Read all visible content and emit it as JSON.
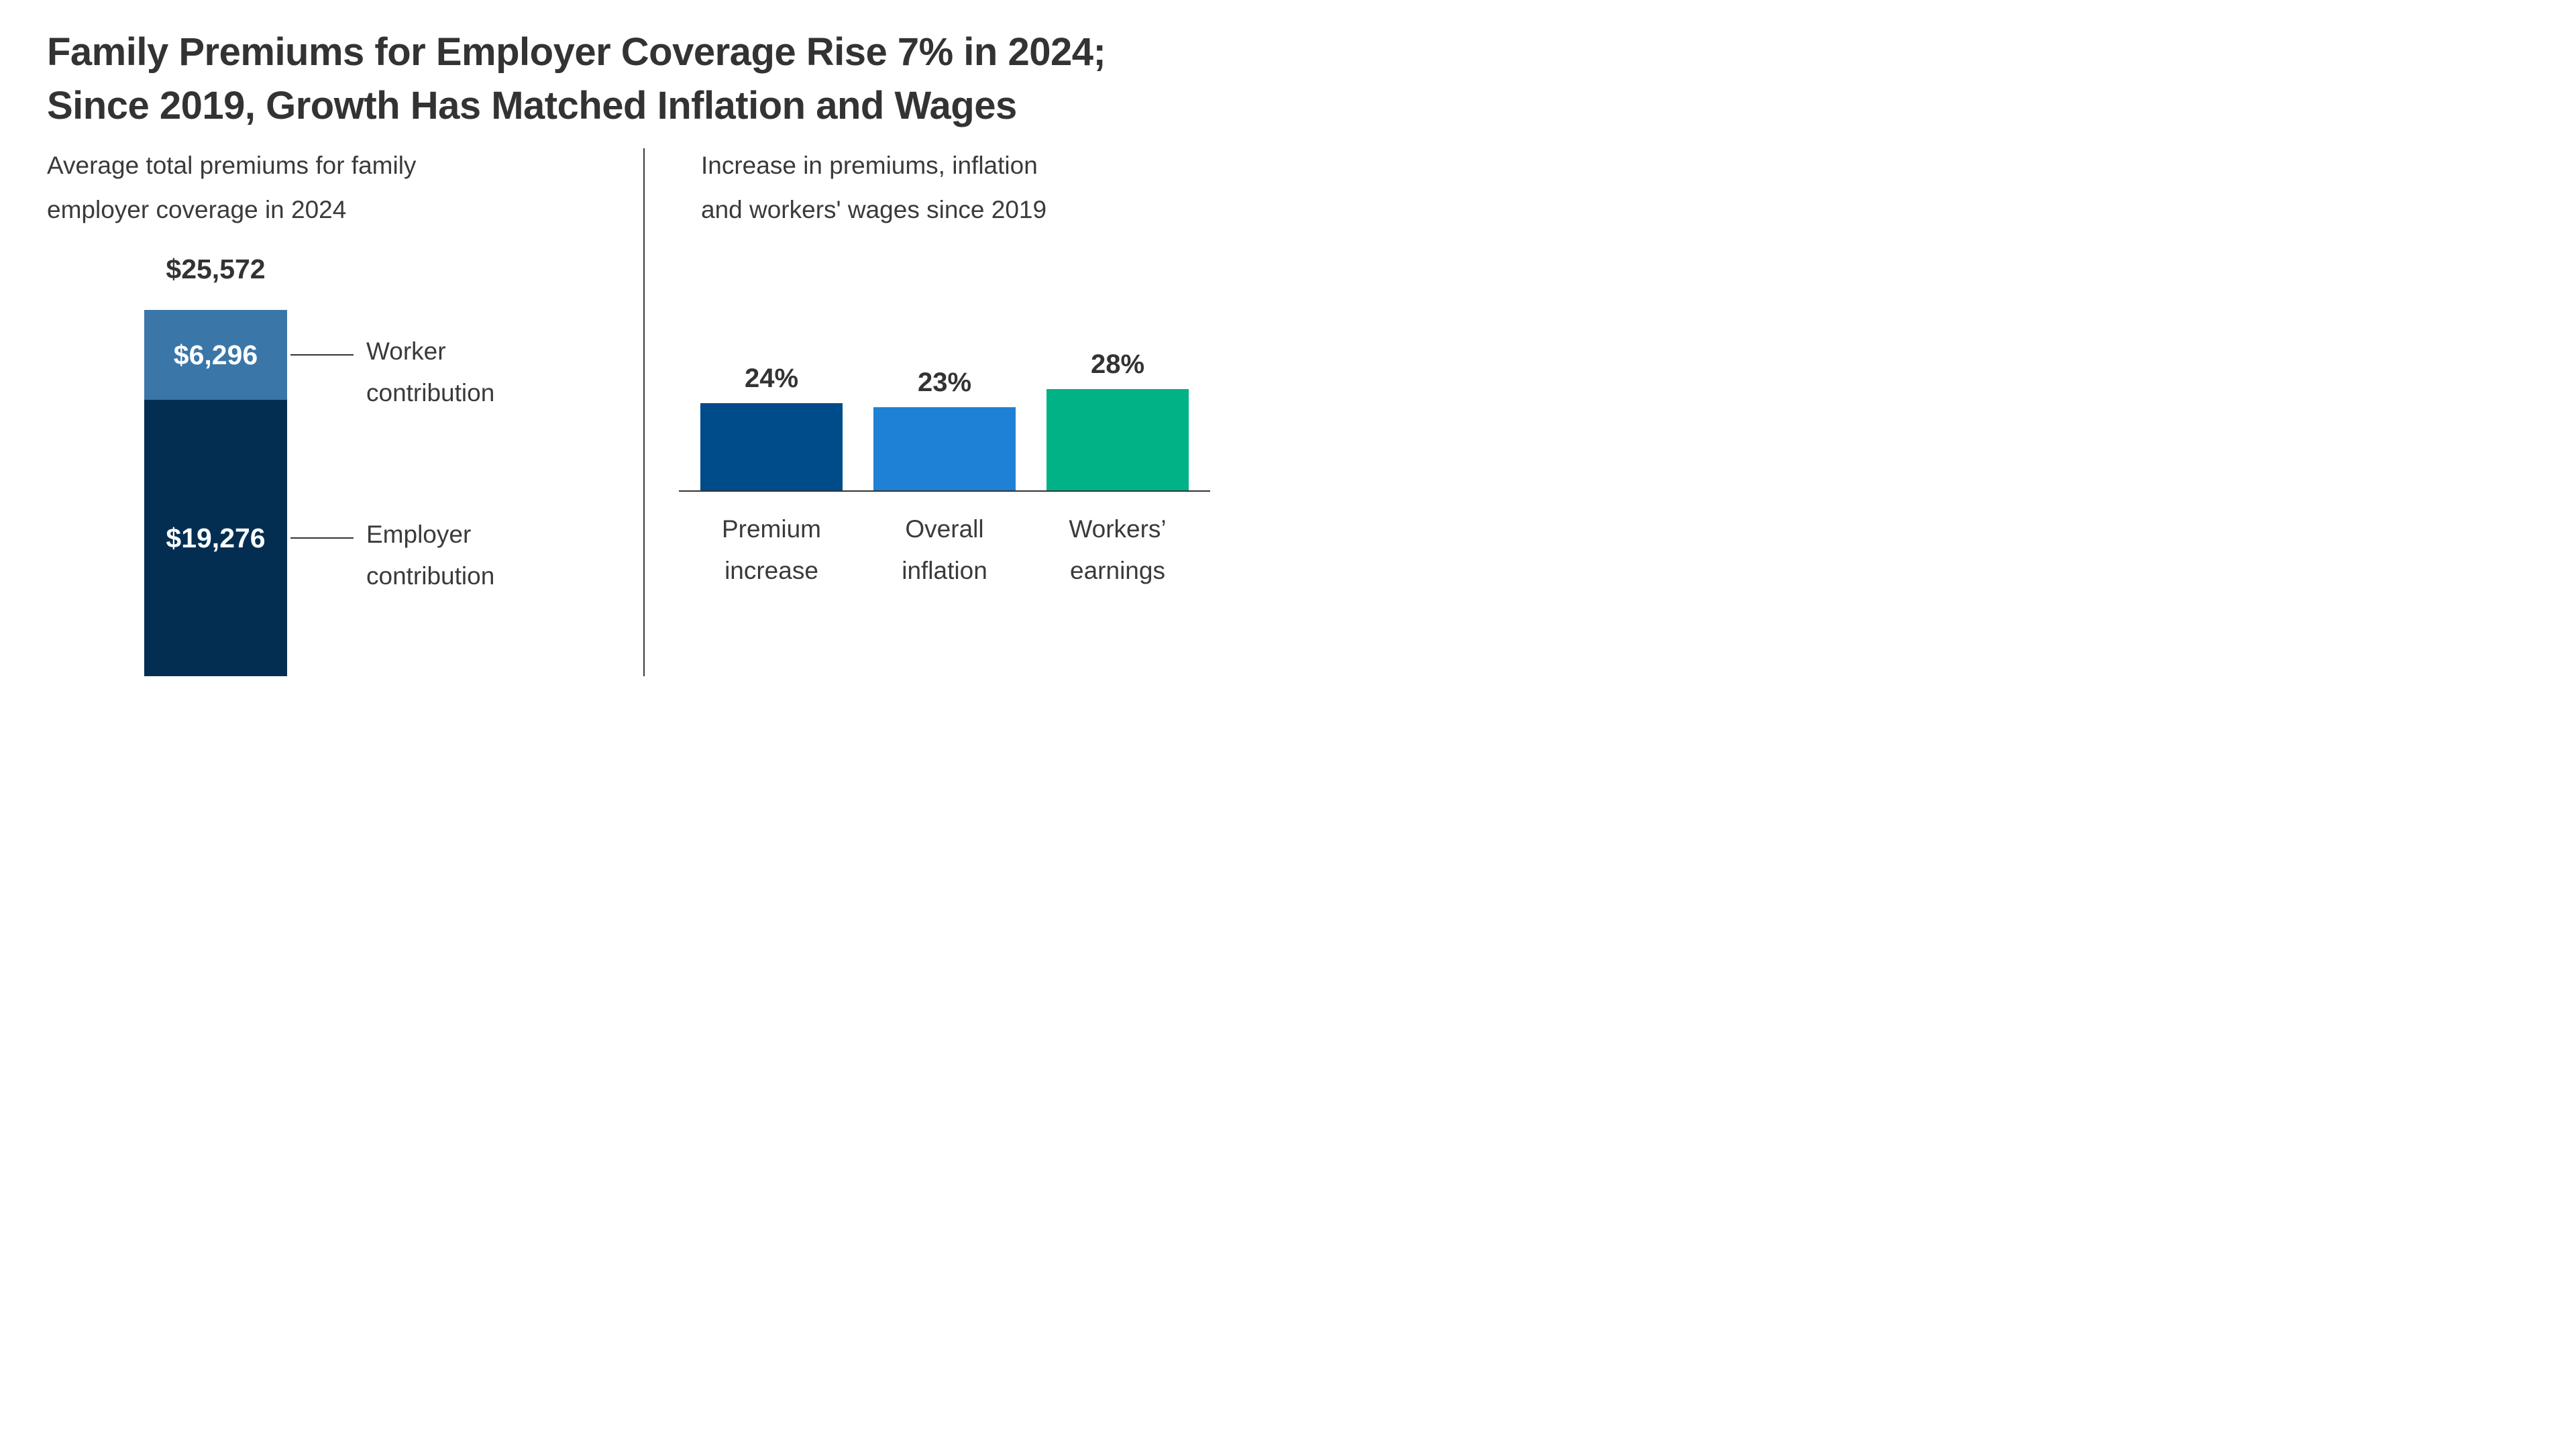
{
  "title": "Family Premiums for Employer Coverage Rise 7% in 2024;\nSince 2019, Growth Has Matched Inflation and Wages",
  "colors": {
    "title_text": "#333333",
    "body_text": "#3A3A3A",
    "divider": "#3A3A3A",
    "axis": "#333333",
    "connector": "#333333",
    "bar_value_text": "#FFFFFF",
    "background": "#FFFFFF"
  },
  "left_panel": {
    "subtitle": "Average total premiums for family\nemployer coverage in 2024"
  },
  "right_panel": {
    "subtitle": "Increase in premiums, inflation\nand workers' wages since 2019"
  },
  "chart_data": [
    {
      "type": "bar",
      "variant": "single-stacked-column",
      "title": "Average total premiums for family employer coverage in 2024",
      "unit": "USD",
      "total_value": 25572,
      "total_label": "$25,572",
      "segments": [
        {
          "name": "Worker contribution",
          "name_label": "Worker\ncontribution",
          "value": 6296,
          "value_label": "$6,296",
          "color": "#3A76A8"
        },
        {
          "name": "Employer contribution",
          "name_label": "Employer\ncontribution",
          "value": 19276,
          "value_label": "$19,276",
          "color": "#032E52"
        }
      ],
      "legend": "none",
      "grid": false
    },
    {
      "type": "bar",
      "title": "Increase in premiums, inflation and workers' wages since 2019",
      "unit": "percent",
      "categories": [
        "Premium increase",
        "Overall inflation",
        "Workers’ earnings"
      ],
      "category_labels": [
        "Premium\nincrease",
        "Overall\ninflation",
        "Workers’\nearnings"
      ],
      "values": [
        24,
        23,
        28
      ],
      "value_labels": [
        "24%",
        "23%",
        "28%"
      ],
      "colors": [
        "#004B89",
        "#1E81D6",
        "#00B286"
      ],
      "ylim": [
        0,
        30
      ],
      "grid": false,
      "legend": "none",
      "baseline_axis": true
    }
  ]
}
